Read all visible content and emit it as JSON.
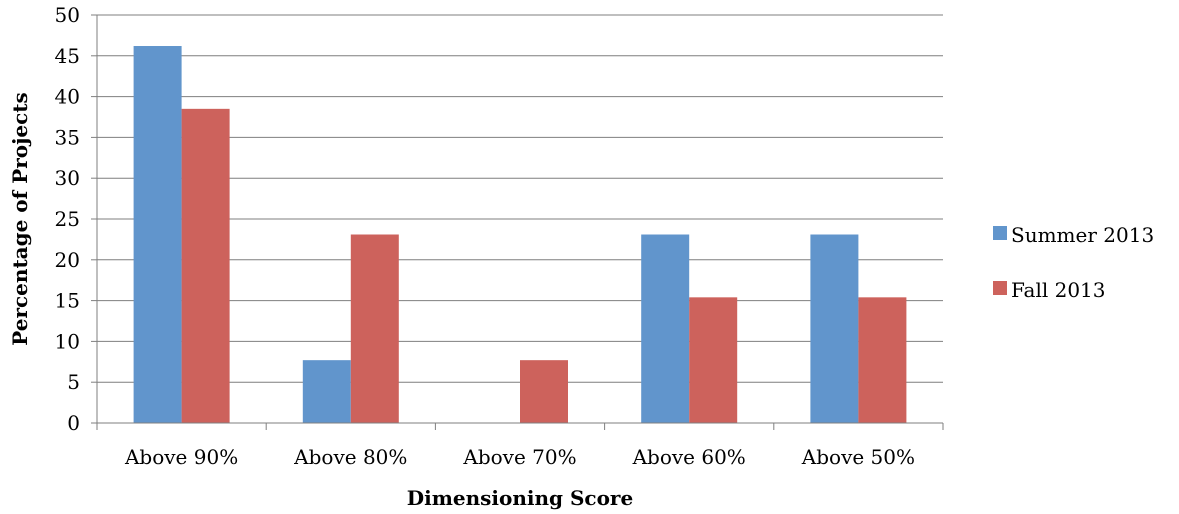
{
  "chart_data": {
    "type": "bar",
    "categories": [
      "Above 90%",
      "Above 80%",
      "Above 70%",
      "Above 60%",
      "Above 50%"
    ],
    "series": [
      {
        "name": "Summer 2013",
        "color": "#6195cc",
        "values": [
          46.2,
          7.7,
          0,
          23.1,
          23.1
        ]
      },
      {
        "name": "Fall 2013",
        "color": "#cd625c",
        "values": [
          38.5,
          23.1,
          7.7,
          15.4,
          15.4
        ]
      }
    ],
    "title": "",
    "xlabel": "Dimensioning Score",
    "ylabel": "Percentage of Projects",
    "ylim": [
      0,
      50
    ],
    "yticks": [
      0,
      5,
      10,
      15,
      20,
      25,
      30,
      35,
      40,
      45,
      50
    ],
    "grid": "horizontal",
    "legend_position": "right"
  }
}
